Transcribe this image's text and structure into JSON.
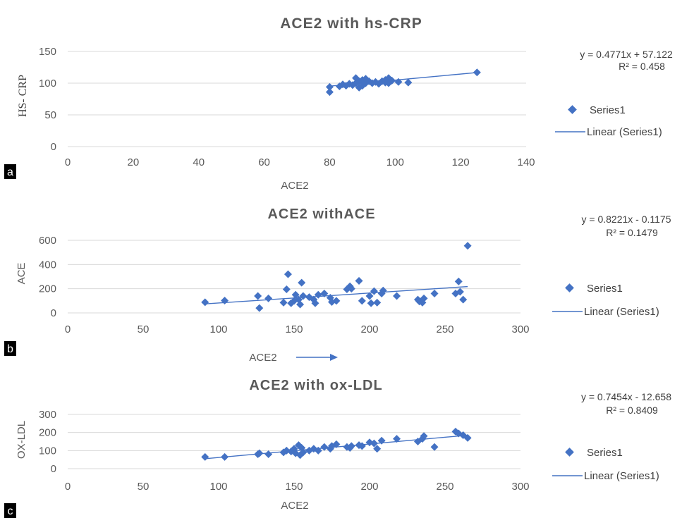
{
  "colors": {
    "marker": "#4472C4",
    "trendline": "#4472C4",
    "grid": "#d9d9d9",
    "text": "#595959",
    "tag_bg": "#000000"
  },
  "chart_data": [
    {
      "type": "scatter",
      "panel": "a",
      "title": "ACE2 with hs-CRP",
      "xlabel": "ACE2",
      "ylabel": "HS- CRP",
      "xlim": [
        0,
        140
      ],
      "xticks": [
        0,
        20,
        40,
        60,
        80,
        100,
        120,
        140
      ],
      "ylim": [
        0,
        150
      ],
      "yticks": [
        0,
        50,
        100,
        150
      ],
      "equation": "y = 0.4771x + 57.122",
      "r2": "R² = 0.458",
      "trend": {
        "slope": 0.4771,
        "intercept": 57.122,
        "x_range": [
          80,
          125
        ]
      },
      "legend": {
        "series": "Series1",
        "trend": "Linear (Series1)"
      },
      "series": [
        {
          "name": "Series1",
          "points": [
            [
              80,
              86
            ],
            [
              80,
              94
            ],
            [
              83,
              95
            ],
            [
              84,
              98
            ],
            [
              85,
              96
            ],
            [
              86,
              99
            ],
            [
              87,
              97
            ],
            [
              88,
              108
            ],
            [
              88,
              100
            ],
            [
              89,
              93
            ],
            [
              89,
              103
            ],
            [
              90,
              96
            ],
            [
              90,
              105
            ],
            [
              91,
              100
            ],
            [
              91,
              107
            ],
            [
              92,
              103
            ],
            [
              93,
              100
            ],
            [
              94,
              102
            ],
            [
              95,
              99
            ],
            [
              96,
              103
            ],
            [
              97,
              101
            ],
            [
              97,
              105
            ],
            [
              98,
              108
            ],
            [
              98,
              100
            ],
            [
              99,
              104
            ],
            [
              101,
              102
            ],
            [
              104,
              101
            ],
            [
              125,
              117
            ]
          ]
        }
      ]
    },
    {
      "type": "scatter",
      "panel": "b",
      "title": "ACE2 withACE",
      "xlabel": "ACE2",
      "ylabel": "ACE",
      "xlim": [
        0,
        300
      ],
      "xticks": [
        0,
        50,
        100,
        150,
        200,
        250,
        300
      ],
      "ylim": [
        0,
        600
      ],
      "yticks": [
        0,
        200,
        400,
        600
      ],
      "equation": "y = 0.8221x - 0.1175",
      "r2": "R² = 0.1479",
      "trend": {
        "slope": 0.8221,
        "intercept": -0.1175,
        "x_range": [
          90,
          265
        ]
      },
      "legend": {
        "series": "Series1",
        "trend": "Linear (Series1)"
      },
      "series": [
        {
          "name": "Series1",
          "points": [
            [
              91,
              88
            ],
            [
              104,
              102
            ],
            [
              126,
              140
            ],
            [
              127,
              40
            ],
            [
              133,
              120
            ],
            [
              143,
              85
            ],
            [
              145,
              195
            ],
            [
              146,
              320
            ],
            [
              148,
              80
            ],
            [
              150,
              100
            ],
            [
              151,
              150
            ],
            [
              153,
              110
            ],
            [
              154,
              70
            ],
            [
              155,
              250
            ],
            [
              156,
              140
            ],
            [
              160,
              130
            ],
            [
              163,
              110
            ],
            [
              164,
              80
            ],
            [
              166,
              150
            ],
            [
              170,
              160
            ],
            [
              174,
              125
            ],
            [
              175,
              90
            ],
            [
              178,
              100
            ],
            [
              185,
              195
            ],
            [
              187,
              220
            ],
            [
              188,
              200
            ],
            [
              193,
              265
            ],
            [
              195,
              100
            ],
            [
              200,
              140
            ],
            [
              201,
              80
            ],
            [
              203,
              180
            ],
            [
              205,
              85
            ],
            [
              208,
              160
            ],
            [
              209,
              185
            ],
            [
              218,
              140
            ],
            [
              232,
              110
            ],
            [
              233,
              95
            ],
            [
              235,
              85
            ],
            [
              236,
              120
            ],
            [
              243,
              160
            ],
            [
              257,
              160
            ],
            [
              259,
              260
            ],
            [
              260,
              175
            ],
            [
              262,
              110
            ],
            [
              265,
              555
            ]
          ]
        }
      ]
    },
    {
      "type": "scatter",
      "panel": "c",
      "title": "ACE2 with ox-LDL",
      "xlabel": "ACE2",
      "ylabel": "OX-LDL",
      "xlim": [
        0,
        300
      ],
      "xticks": [
        0,
        50,
        100,
        150,
        200,
        250,
        300
      ],
      "ylim": [
        0,
        300
      ],
      "yticks": [
        0,
        100,
        200,
        300
      ],
      "equation": "y = 0.7454x - 12.658",
      "r2": "R² = 0.8409",
      "trend": {
        "slope": 0.7454,
        "intercept": -12.658,
        "x_range": [
          90,
          265
        ]
      },
      "legend": {
        "series": "Series1",
        "trend": "Linear (Series1)"
      },
      "series": [
        {
          "name": "Series1",
          "points": [
            [
              91,
              65
            ],
            [
              104,
              65
            ],
            [
              126,
              80
            ],
            [
              127,
              85
            ],
            [
              133,
              80
            ],
            [
              143,
              90
            ],
            [
              145,
              100
            ],
            [
              148,
              95
            ],
            [
              150,
              110
            ],
            [
              151,
              85
            ],
            [
              153,
              130
            ],
            [
              154,
              75
            ],
            [
              155,
              115
            ],
            [
              156,
              90
            ],
            [
              160,
              100
            ],
            [
              163,
              110
            ],
            [
              166,
              100
            ],
            [
              170,
              120
            ],
            [
              174,
              110
            ],
            [
              175,
              125
            ],
            [
              178,
              135
            ],
            [
              185,
              120
            ],
            [
              187,
              115
            ],
            [
              188,
              125
            ],
            [
              193,
              130
            ],
            [
              195,
              125
            ],
            [
              200,
              145
            ],
            [
              203,
              140
            ],
            [
              205,
              110
            ],
            [
              208,
              155
            ],
            [
              218,
              165
            ],
            [
              232,
              150
            ],
            [
              235,
              165
            ],
            [
              236,
              180
            ],
            [
              243,
              120
            ],
            [
              257,
              205
            ],
            [
              259,
              195
            ],
            [
              262,
              185
            ],
            [
              265,
              170
            ]
          ]
        }
      ]
    }
  ]
}
